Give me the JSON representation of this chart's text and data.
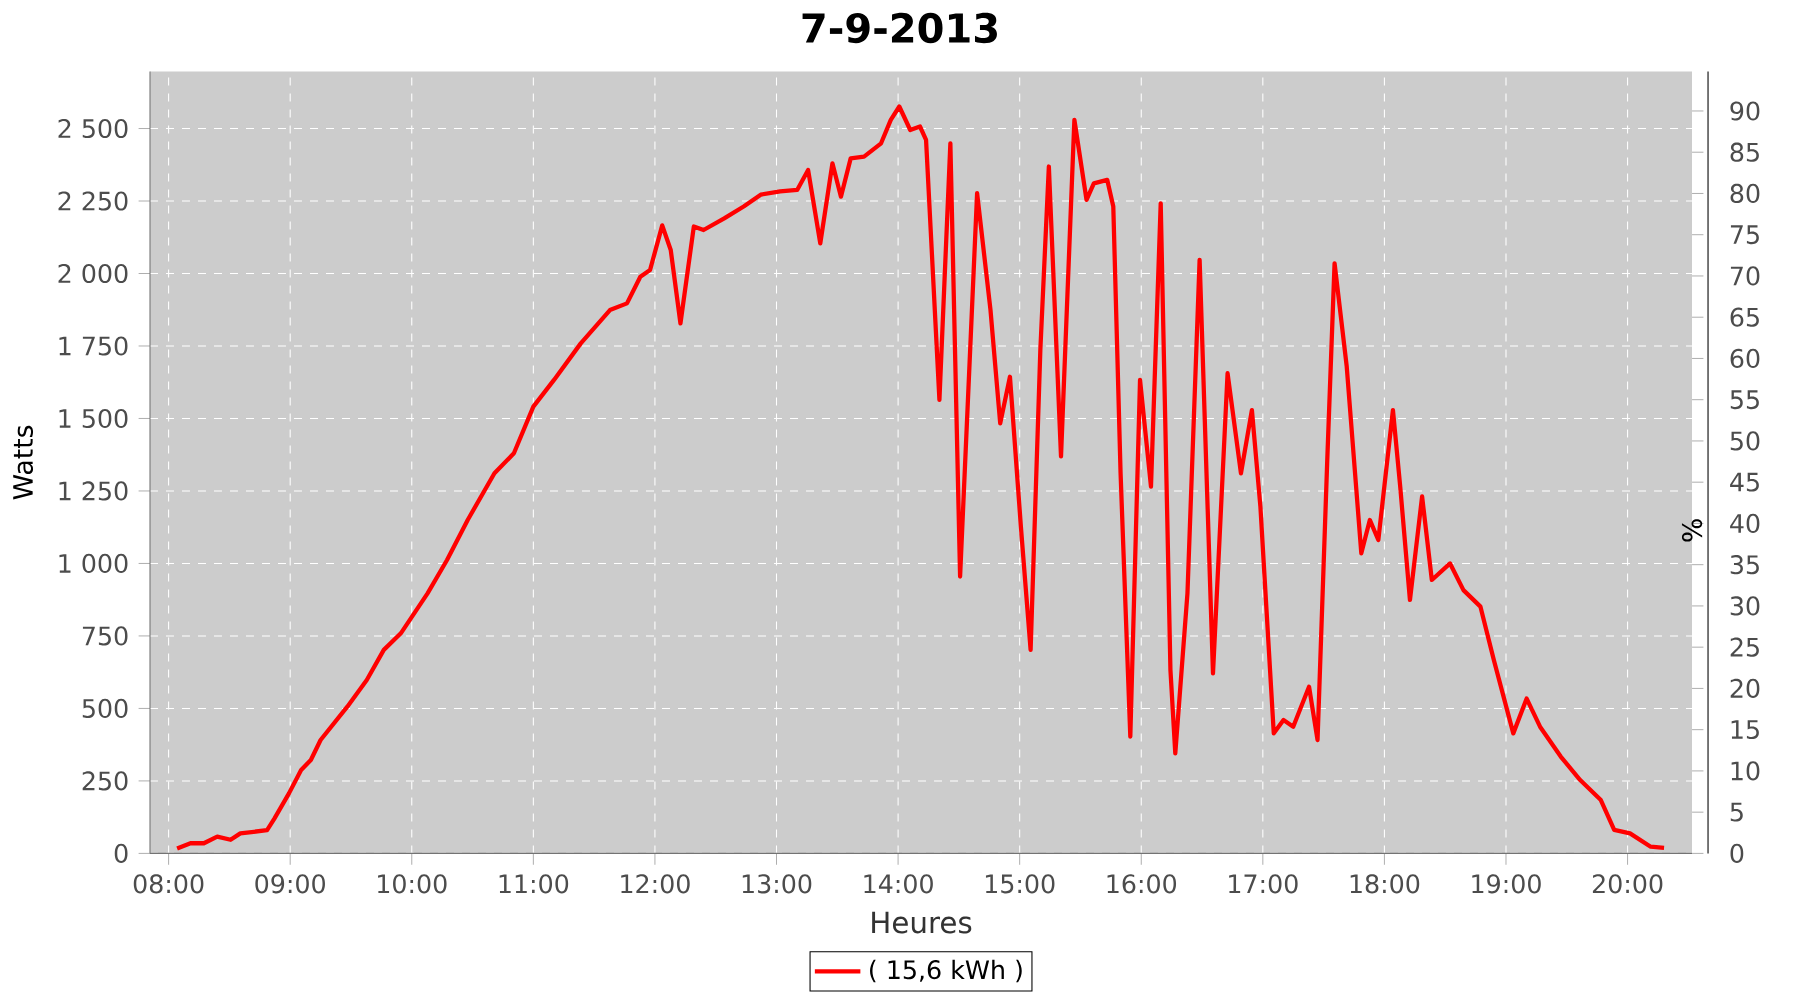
{
  "chart_data": {
    "type": "line",
    "title": "7-9-2013",
    "xlabel": "Heures",
    "ylabel": "Watts",
    "y2label": "%",
    "x": [
      8.07,
      8.18,
      8.29,
      8.4,
      8.51,
      8.59,
      8.81,
      8.87,
      8.99,
      9.09,
      9.17,
      9.25,
      9.47,
      9.63,
      9.77,
      9.91,
      10.13,
      10.29,
      10.46,
      10.68,
      10.84,
      11.0,
      11.17,
      11.39,
      11.63,
      11.77,
      11.88,
      11.96,
      12.06,
      12.13,
      12.21,
      12.32,
      12.4,
      12.57,
      12.73,
      12.87,
      13.03,
      13.17,
      13.26,
      13.36,
      13.46,
      13.53,
      13.61,
      13.72,
      13.86,
      13.94,
      14.01,
      14.1,
      14.18,
      14.23,
      14.34,
      14.43,
      14.51,
      14.65,
      14.76,
      14.84,
      14.92,
      15.01,
      15.09,
      15.17,
      15.24,
      15.34,
      15.45,
      15.55,
      15.61,
      15.72,
      15.77,
      15.83,
      15.91,
      15.99,
      16.08,
      16.16,
      16.24,
      16.28,
      16.38,
      16.48,
      16.59,
      16.71,
      16.82,
      16.91,
      16.98,
      17.09,
      17.17,
      17.25,
      17.38,
      17.45,
      17.53,
      17.59,
      17.69,
      17.81,
      17.88,
      17.95,
      18.07,
      18.13,
      18.21,
      18.31,
      18.39,
      18.54,
      18.65,
      18.79,
      18.9,
      19.06,
      19.17,
      19.28,
      19.45,
      19.61,
      19.78,
      19.89,
      20.02,
      20.19,
      20.3
    ],
    "series": [
      {
        "name": "( 15,6 kWh )",
        "color": "#ff0000",
        "values": [
          17,
          35,
          35,
          58,
          47,
          69,
          80,
          120,
          207,
          288,
          322,
          391,
          506,
          598,
          702,
          759,
          897,
          1012,
          1150,
          1311,
          1380,
          1541,
          1633,
          1759,
          1874,
          1897,
          1989,
          2012,
          2166,
          2081,
          1828,
          2162,
          2150,
          2190,
          2231,
          2272,
          2283,
          2288,
          2357,
          2104,
          2380,
          2265,
          2397,
          2403,
          2449,
          2530,
          2576,
          2495,
          2507,
          2461,
          1564,
          2449,
          955,
          2277,
          1874,
          1483,
          1644,
          1127,
          702,
          1736,
          2369,
          1369,
          2530,
          2254,
          2311,
          2323,
          2231,
          1311,
          403,
          1633,
          1265,
          2242,
          633,
          345,
          897,
          2047,
          621,
          1656,
          1311,
          1529,
          1196,
          414,
          460,
          437,
          575,
          391,
          1357,
          2035,
          1679,
          1035,
          1150,
          1081,
          1529,
          1265,
          874,
          1231,
          943,
          1000,
          908,
          851,
          667,
          414,
          534,
          437,
          334,
          253,
          184,
          81,
          69,
          23,
          19
        ]
      }
    ],
    "xlim": [
      7.847,
      20.53
    ],
    "xticks": [
      {
        "value": 8,
        "label": "08:00"
      },
      {
        "value": 9,
        "label": "09:00"
      },
      {
        "value": 10,
        "label": "10:00"
      },
      {
        "value": 11,
        "label": "11:00"
      },
      {
        "value": 12,
        "label": "12:00"
      },
      {
        "value": 13,
        "label": "13:00"
      },
      {
        "value": 14,
        "label": "14:00"
      },
      {
        "value": 15,
        "label": "15:00"
      },
      {
        "value": 16,
        "label": "16:00"
      },
      {
        "value": 17,
        "label": "17:00"
      },
      {
        "value": 18,
        "label": "18:00"
      },
      {
        "value": 19,
        "label": "19:00"
      },
      {
        "value": 20,
        "label": "20:00"
      }
    ],
    "ylim": [
      0,
      2697
    ],
    "yticks": [
      0,
      250,
      500,
      750,
      {
        "value": 1000,
        "label": "1 000"
      },
      {
        "value": 1250,
        "label": "1 250"
      },
      {
        "value": 1500,
        "label": "1 500"
      },
      {
        "value": 1750,
        "label": "1 750"
      },
      {
        "value": 2000,
        "label": "2 000"
      },
      {
        "value": 2250,
        "label": "2 250"
      },
      {
        "value": 2500,
        "label": "2 500"
      }
    ],
    "y2lim": [
      0,
      94.8
    ],
    "y2ticks": [
      0,
      5,
      10,
      15,
      20,
      25,
      30,
      35,
      40,
      45,
      50,
      55,
      60,
      65,
      70,
      75,
      80,
      85,
      90
    ],
    "grid": true,
    "legend": "bottom",
    "line_style": "solid"
  }
}
